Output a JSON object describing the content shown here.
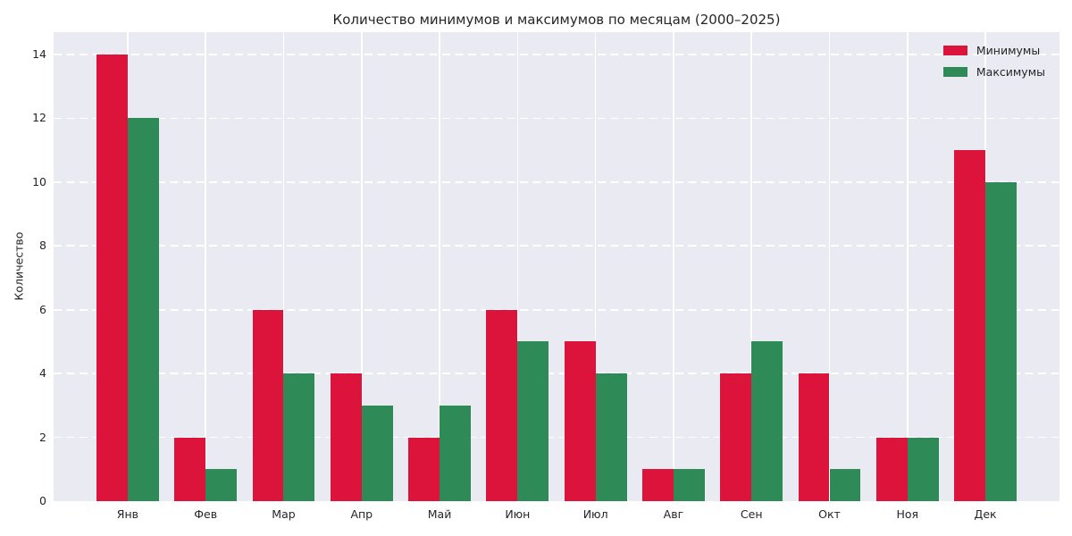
{
  "figure": {
    "background": "#ffffff",
    "plot_background": "#eaeaf2",
    "grid_color": "#ffffff",
    "text_color": "#262626"
  },
  "chart_data": {
    "type": "bar",
    "title": "Количество минимумов и максимумов по месяцам (2000–2025)",
    "xlabel": "",
    "ylabel": "Количество",
    "categories": [
      "Янв",
      "Фев",
      "Мар",
      "Апр",
      "Май",
      "Июн",
      "Июл",
      "Авг",
      "Сен",
      "Окт",
      "Ноя",
      "Дек"
    ],
    "series": [
      {
        "name": "Минимумы",
        "color": "#dc143c",
        "values": [
          14,
          2,
          6,
          4,
          2,
          6,
          5,
          1,
          4,
          4,
          2,
          11
        ]
      },
      {
        "name": "Максимумы",
        "color": "#2e8b57",
        "values": [
          12,
          1,
          4,
          3,
          3,
          5,
          4,
          1,
          5,
          1,
          2,
          10
        ]
      }
    ],
    "yticks": [
      0,
      2,
      4,
      6,
      8,
      10,
      12,
      14
    ],
    "ylim": [
      0,
      14.7
    ],
    "grid": true,
    "grid_style": "horizontal-dashed-vertical-solid",
    "legend_position": "upper right"
  }
}
